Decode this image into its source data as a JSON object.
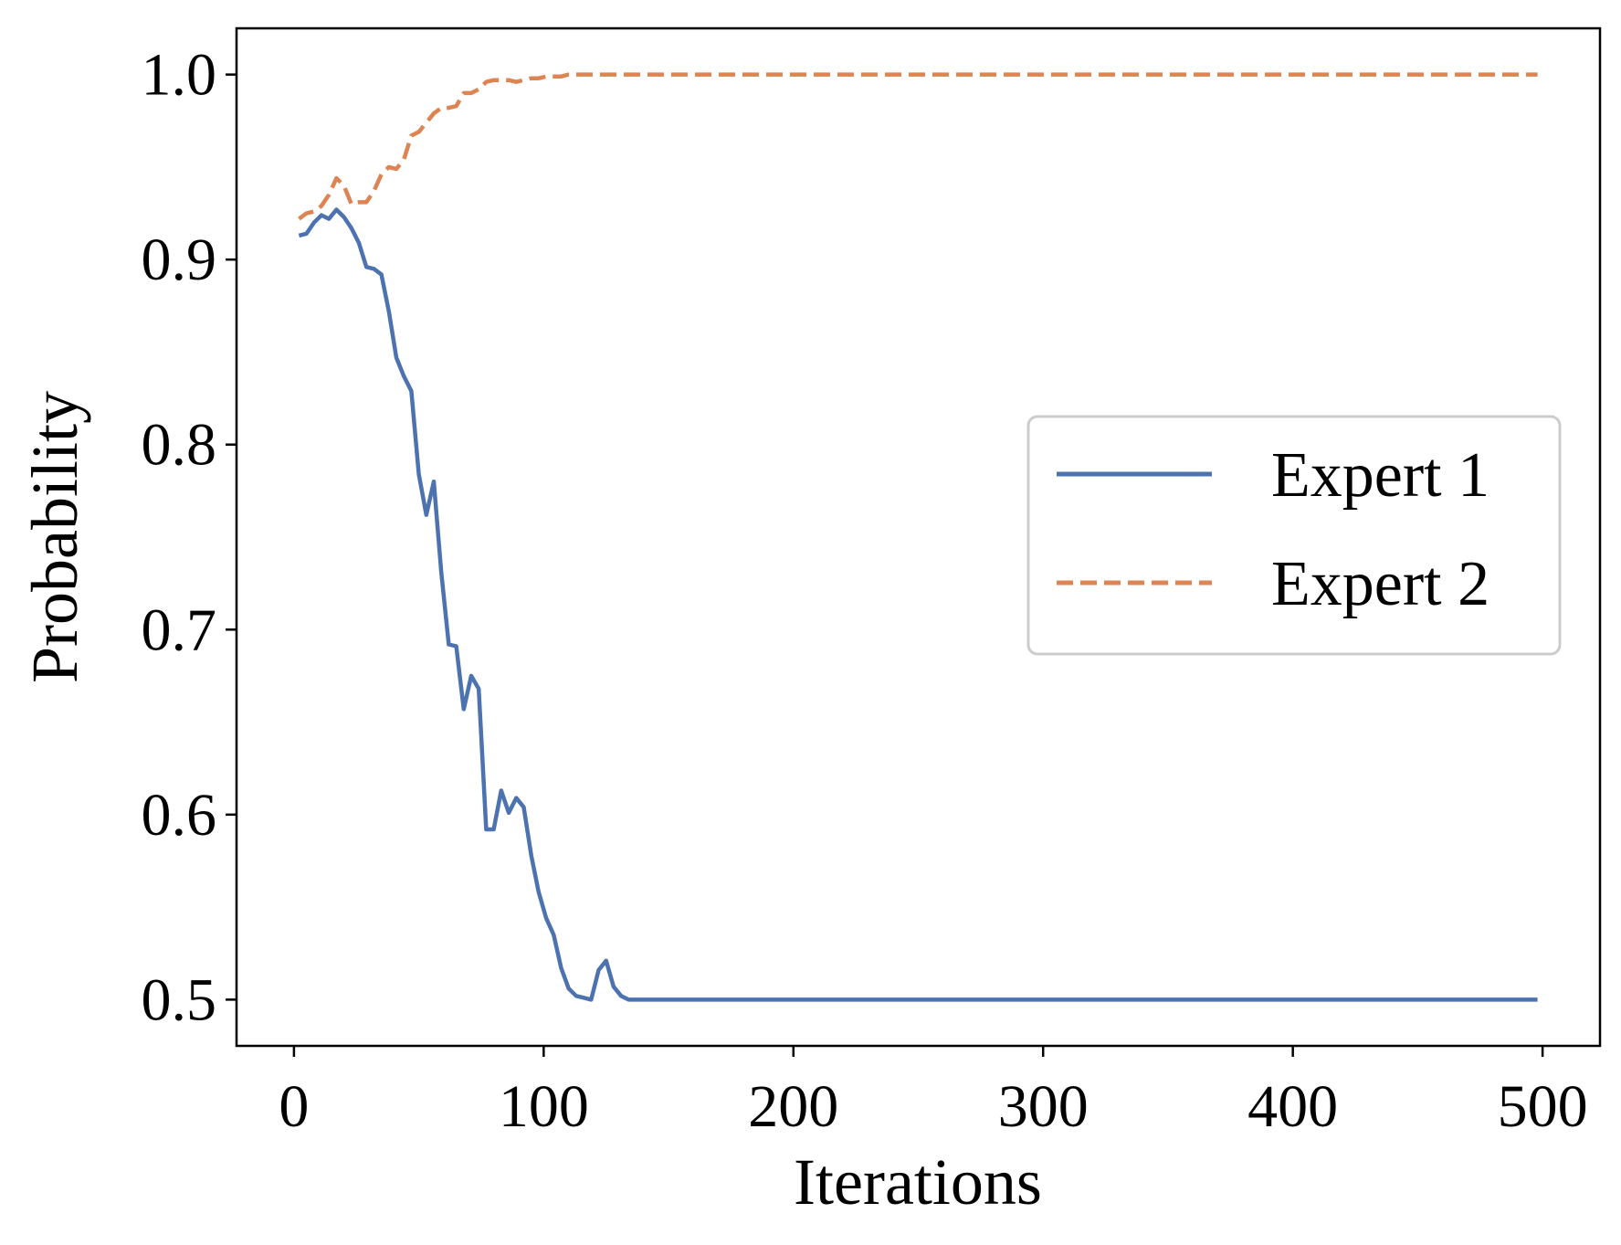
{
  "chart_data": {
    "type": "line",
    "title": "",
    "xlabel": "Iterations",
    "ylabel": "Probability",
    "xlim": [
      -23,
      523
    ],
    "ylim": [
      0.475,
      1.025
    ],
    "xticks": [
      0,
      100,
      200,
      300,
      400,
      500
    ],
    "xtick_labels": [
      "0",
      "100",
      "200",
      "300",
      "400",
      "500"
    ],
    "yticks": [
      0.5,
      0.6,
      0.7,
      0.8,
      0.9,
      1.0
    ],
    "ytick_labels": [
      "0.5",
      "0.6",
      "0.7",
      "0.8",
      "0.9",
      "1.0"
    ],
    "grid": false,
    "legend_position": "center-right",
    "series": [
      {
        "name": "Expert 1",
        "color": "#4c72b0",
        "dash": "solid",
        "x": [
          2,
          5,
          8,
          11,
          14,
          17,
          20,
          23,
          26,
          29,
          32,
          35,
          38,
          41,
          44,
          47,
          50,
          53,
          56,
          59,
          62,
          65,
          68,
          71,
          74,
          77,
          80,
          83,
          86,
          89,
          92,
          95,
          98,
          101,
          104,
          107,
          110,
          113,
          116,
          119,
          122,
          125,
          128,
          131,
          134,
          137,
          140,
          150,
          200,
          300,
          400,
          498
        ],
        "y": [
          0.913,
          0.914,
          0.92,
          0.924,
          0.922,
          0.927,
          0.923,
          0.917,
          0.909,
          0.896,
          0.895,
          0.892,
          0.872,
          0.847,
          0.837,
          0.829,
          0.784,
          0.762,
          0.78,
          0.731,
          0.692,
          0.691,
          0.657,
          0.675,
          0.668,
          0.592,
          0.592,
          0.613,
          0.601,
          0.609,
          0.604,
          0.578,
          0.558,
          0.544,
          0.535,
          0.517,
          0.506,
          0.502,
          0.501,
          0.5,
          0.516,
          0.521,
          0.507,
          0.502,
          0.5,
          0.5,
          0.5,
          0.5,
          0.5,
          0.5,
          0.5,
          0.5
        ]
      },
      {
        "name": "Expert 2",
        "color": "#dd8452",
        "dash": "dashed",
        "x": [
          2,
          5,
          8,
          11,
          14,
          17,
          20,
          23,
          26,
          29,
          32,
          35,
          38,
          41,
          44,
          47,
          50,
          53,
          56,
          59,
          62,
          65,
          68,
          71,
          74,
          77,
          80,
          83,
          86,
          89,
          92,
          95,
          98,
          101,
          104,
          107,
          110,
          115,
          120,
          130,
          140,
          200,
          300,
          400,
          498
        ],
        "y": [
          0.922,
          0.925,
          0.926,
          0.929,
          0.935,
          0.944,
          0.94,
          0.93,
          0.931,
          0.931,
          0.937,
          0.946,
          0.95,
          0.949,
          0.954,
          0.967,
          0.969,
          0.974,
          0.979,
          0.982,
          0.982,
          0.983,
          0.99,
          0.99,
          0.992,
          0.996,
          0.997,
          0.997,
          0.997,
          0.996,
          0.997,
          0.998,
          0.998,
          0.999,
          0.999,
          0.999,
          1.0,
          1.0,
          1.0,
          1.0,
          1.0,
          1.0,
          1.0,
          1.0,
          1.0
        ]
      }
    ]
  }
}
